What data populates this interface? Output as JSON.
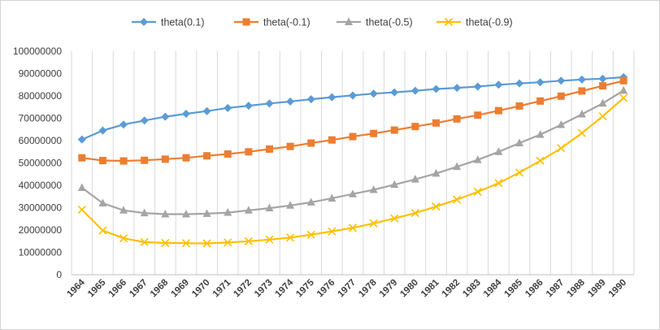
{
  "chart_data": {
    "type": "line",
    "title": "",
    "xlabel": "",
    "ylabel": "",
    "x": [
      "1964",
      "1965",
      "1966",
      "1967",
      "1968",
      "1969",
      "1970",
      "1971",
      "1972",
      "1973",
      "1974",
      "1975",
      "1976",
      "1977",
      "1978",
      "1979",
      "1980",
      "1981",
      "1982",
      "1983",
      "1984",
      "1985",
      "1986",
      "1987",
      "1988",
      "1989",
      "1990"
    ],
    "ylim": [
      0,
      100000000
    ],
    "yticks": [
      "0",
      "10000000",
      "20000000",
      "30000000",
      "40000000",
      "50000000",
      "60000000",
      "70000000",
      "80000000",
      "90000000",
      "100000000"
    ],
    "grid": "vertical",
    "legend_position": "top",
    "series": [
      {
        "name": "theta(0.1)",
        "color": "#5b9bd5",
        "marker": "diamond",
        "values": [
          60500000,
          64500000,
          67200000,
          69000000,
          70700000,
          72000000,
          73200000,
          74600000,
          75600000,
          76600000,
          77500000,
          78500000,
          79400000,
          80200000,
          81000000,
          81600000,
          82300000,
          83100000,
          83600000,
          84200000,
          85000000,
          85600000,
          86100000,
          86800000,
          87300000,
          87700000,
          88400000
        ]
      },
      {
        "name": "theta(-0.1)",
        "color": "#ed7d31",
        "marker": "square",
        "values": [
          52300000,
          51100000,
          50900000,
          51200000,
          51700000,
          52300000,
          53200000,
          54000000,
          55000000,
          56200000,
          57400000,
          58900000,
          60300000,
          61800000,
          63200000,
          64700000,
          66300000,
          67900000,
          69700000,
          71400000,
          73400000,
          75500000,
          77700000,
          79900000,
          82200000,
          84500000,
          86800000
        ]
      },
      {
        "name": "theta(-0.5)",
        "color": "#a5a5a5",
        "marker": "triangle",
        "values": [
          38900000,
          32000000,
          28800000,
          27600000,
          27100000,
          27100000,
          27300000,
          27800000,
          28800000,
          29800000,
          31000000,
          32400000,
          34200000,
          36100000,
          38000000,
          40300000,
          42700000,
          45300000,
          48300000,
          51400000,
          55000000,
          58900000,
          62700000,
          67100000,
          71800000,
          76700000,
          82400000
        ]
      },
      {
        "name": "theta(-0.9)",
        "color": "#ffc000",
        "marker": "x",
        "values": [
          29100000,
          19800000,
          16300000,
          14600000,
          14200000,
          14100000,
          14000000,
          14400000,
          15000000,
          15700000,
          16600000,
          17900000,
          19400000,
          21000000,
          23000000,
          25200000,
          27600000,
          30500000,
          33600000,
          37100000,
          41000000,
          45700000,
          51000000,
          56600000,
          63400000,
          70900000,
          79100000
        ]
      }
    ]
  }
}
